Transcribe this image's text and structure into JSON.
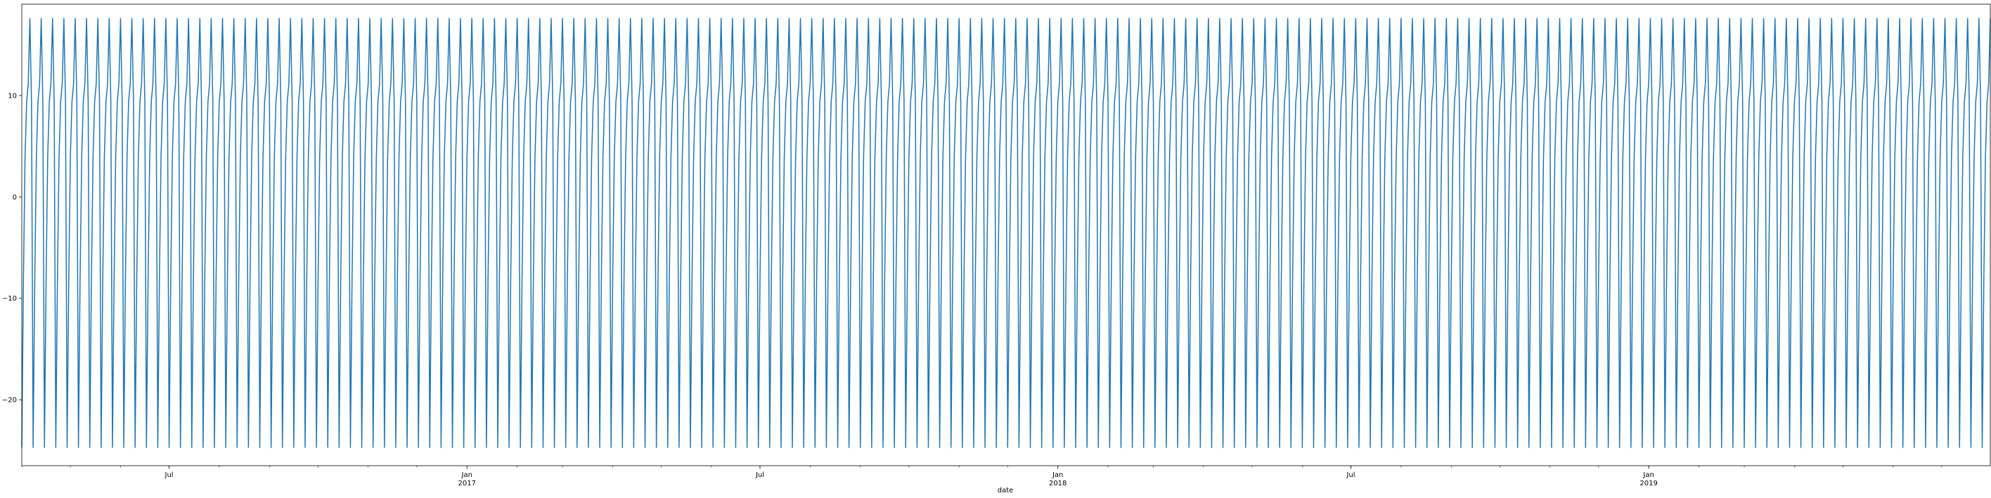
{
  "chart_data": {
    "type": "line",
    "title": "",
    "xlabel": "date",
    "ylabel": "",
    "x_range": [
      "2016-04-01",
      "2019-07-31"
    ],
    "ylim": [
      -26.5,
      19.0
    ],
    "period_days": 7,
    "series": [
      {
        "color": "#1f77b4",
        "weekly_pattern": [
          -24.7,
          -8.3,
          3.9,
          9.4,
          11.2,
          17.6,
          9.4
        ]
      }
    ],
    "y_ticks": [
      {
        "value": -20,
        "label": "−20"
      },
      {
        "value": -10,
        "label": "−10"
      },
      {
        "value": 0,
        "label": "0"
      },
      {
        "value": 10,
        "label": "10"
      }
    ],
    "x_major_ticks": [
      {
        "date": "2016-07-01",
        "label": "Jul",
        "sublabel": ""
      },
      {
        "date": "2017-01-01",
        "label": "Jan",
        "sublabel": "2017"
      },
      {
        "date": "2017-07-01",
        "label": "Jul",
        "sublabel": ""
      },
      {
        "date": "2018-01-01",
        "label": "Jan",
        "sublabel": "2018"
      },
      {
        "date": "2018-07-01",
        "label": "Jul",
        "sublabel": ""
      },
      {
        "date": "2019-01-01",
        "label": "Jan",
        "sublabel": "2019"
      }
    ],
    "grid": false,
    "legend": "none"
  }
}
